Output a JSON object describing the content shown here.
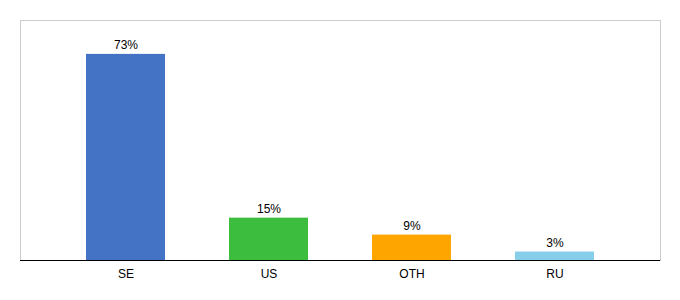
{
  "chart_data": {
    "type": "bar",
    "categories": [
      "SE",
      "US",
      "OTH",
      "RU"
    ],
    "values": [
      73,
      15,
      9,
      3
    ],
    "value_labels": [
      "73%",
      "15%",
      "9%",
      "3%"
    ],
    "data_labels": true,
    "colors": [
      "#4472C4",
      "#3DBD3D",
      "#FFA500",
      "#87CEEB"
    ],
    "ylim": [
      0,
      85
    ],
    "tick_labels": "x",
    "grid": false
  }
}
